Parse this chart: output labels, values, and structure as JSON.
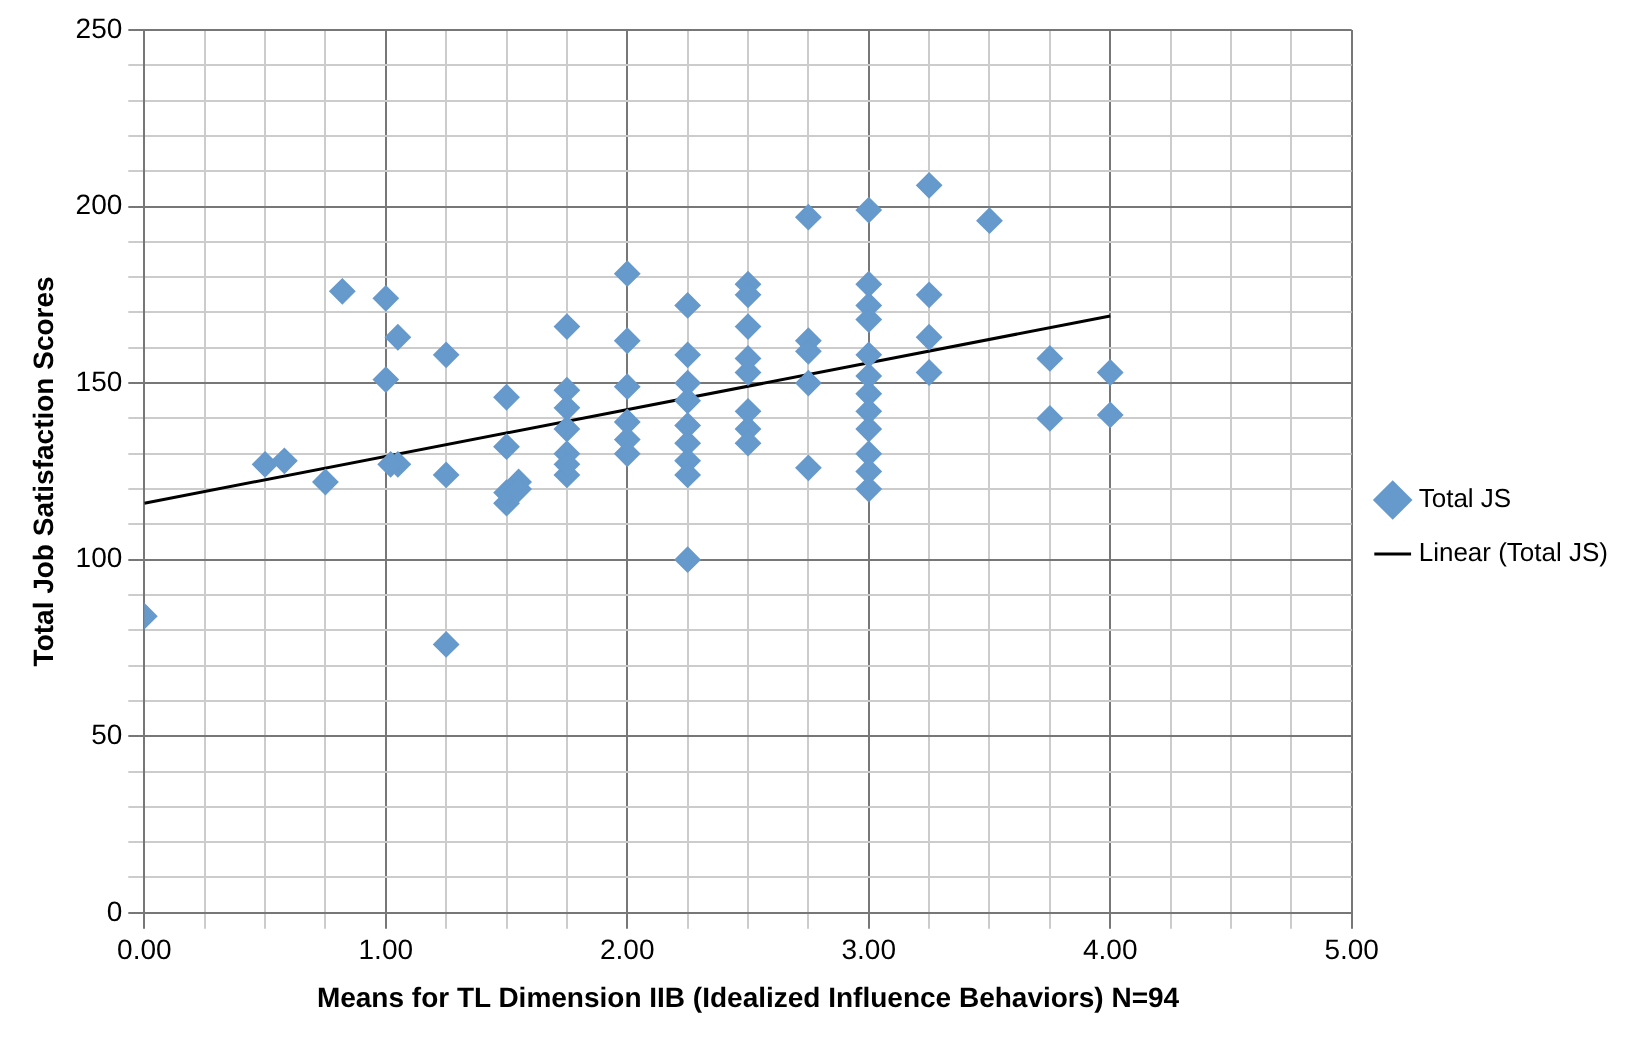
{
  "chart_data": {
    "type": "scatter",
    "xlabel": "Means for TL Dimension IIB (Idealized Influence Behaviors) N=94",
    "ylabel": "Total Job Satisfaction Scores",
    "xlim": [
      0,
      5
    ],
    "ylim": [
      0,
      250
    ],
    "xticks": [
      {
        "value": 0,
        "label": "0.00"
      },
      {
        "value": 0.25,
        "label": null
      },
      {
        "value": 0.5,
        "label": null
      },
      {
        "value": 0.75,
        "label": null
      },
      {
        "value": 1,
        "label": "1.00"
      },
      {
        "value": 1.25,
        "label": null
      },
      {
        "value": 1.5,
        "label": null
      },
      {
        "value": 1.75,
        "label": null
      },
      {
        "value": 2,
        "label": "2.00"
      },
      {
        "value": 2.25,
        "label": null
      },
      {
        "value": 2.5,
        "label": null
      },
      {
        "value": 2.75,
        "label": null
      },
      {
        "value": 3,
        "label": "3.00"
      },
      {
        "value": 3.25,
        "label": null
      },
      {
        "value": 3.5,
        "label": null
      },
      {
        "value": 3.75,
        "label": null
      },
      {
        "value": 4,
        "label": "4.00"
      },
      {
        "value": 4.25,
        "label": null
      },
      {
        "value": 4.5,
        "label": null
      },
      {
        "value": 4.75,
        "label": null
      },
      {
        "value": 5,
        "label": "5.00"
      }
    ],
    "yticks": [
      0,
      {
        "value": 10,
        "label": null
      },
      {
        "value": 20,
        "label": null
      },
      {
        "value": 30,
        "label": null
      },
      {
        "value": 40,
        "label": null
      },
      50,
      {
        "value": 60,
        "label": null
      },
      {
        "value": 70,
        "label": null
      },
      {
        "value": 80,
        "label": null
      },
      {
        "value": 90,
        "label": null
      },
      100,
      {
        "value": 110,
        "label": null
      },
      {
        "value": 120,
        "label": null
      },
      {
        "value": 130,
        "label": null
      },
      {
        "value": 140,
        "label": null
      },
      150,
      {
        "value": 160,
        "label": null
      },
      {
        "value": 170,
        "label": null
      },
      {
        "value": 180,
        "label": null
      },
      {
        "value": 190,
        "label": null
      },
      200,
      {
        "value": 210,
        "label": null
      },
      {
        "value": 220,
        "label": null
      },
      {
        "value": 230,
        "label": null
      },
      {
        "value": 240,
        "label": null
      },
      250
    ],
    "grid": true,
    "legend": "right",
    "marker": "diamond",
    "series": [
      {
        "name": "Total JS",
        "color": "#6699cc",
        "x": [
          0,
          0.5,
          0.58,
          0.75,
          0.82,
          1,
          1,
          1.05,
          1.05,
          1.02,
          1.25,
          1.25,
          1.25,
          1.5,
          1.5,
          1.5,
          1.5,
          1.55,
          1.55,
          1.75,
          1.75,
          1.75,
          1.75,
          1.75,
          1.75,
          1.75,
          2,
          2,
          2,
          2,
          2,
          2,
          2.25,
          2.25,
          2.25,
          2.25,
          2.25,
          2.25,
          2.25,
          2.25,
          2.25,
          2.5,
          2.5,
          2.5,
          2.5,
          2.5,
          2.5,
          2.5,
          2.5,
          2.75,
          2.75,
          2.75,
          2.75,
          2.75,
          3,
          3,
          3,
          3,
          3,
          3,
          3,
          3,
          3,
          3,
          3,
          3,
          3.25,
          3.25,
          3.25,
          3.25,
          3.5,
          3.75,
          3.75,
          4,
          4
        ],
        "values": [
          84,
          127,
          128,
          122,
          176,
          174,
          151,
          163,
          127,
          127,
          158,
          124,
          76,
          146,
          132,
          116,
          119,
          122,
          120,
          166,
          148,
          143,
          137,
          130,
          124,
          127,
          181,
          162,
          149,
          139,
          134,
          130,
          172,
          158,
          150,
          145,
          138,
          133,
          128,
          124,
          100,
          178,
          175,
          166,
          157,
          153,
          142,
          137,
          133,
          197,
          162,
          159,
          150,
          126,
          199,
          178,
          172,
          168,
          158,
          152,
          147,
          142,
          137,
          130,
          125,
          120,
          206,
          175,
          163,
          153,
          196,
          157,
          140,
          153,
          141
        ]
      },
      {
        "name": "Linear (Total JS)",
        "type": "line",
        "color": "#000000",
        "marker": "none",
        "x": [
          0,
          4
        ],
        "values": [
          116,
          169
        ]
      }
    ]
  }
}
